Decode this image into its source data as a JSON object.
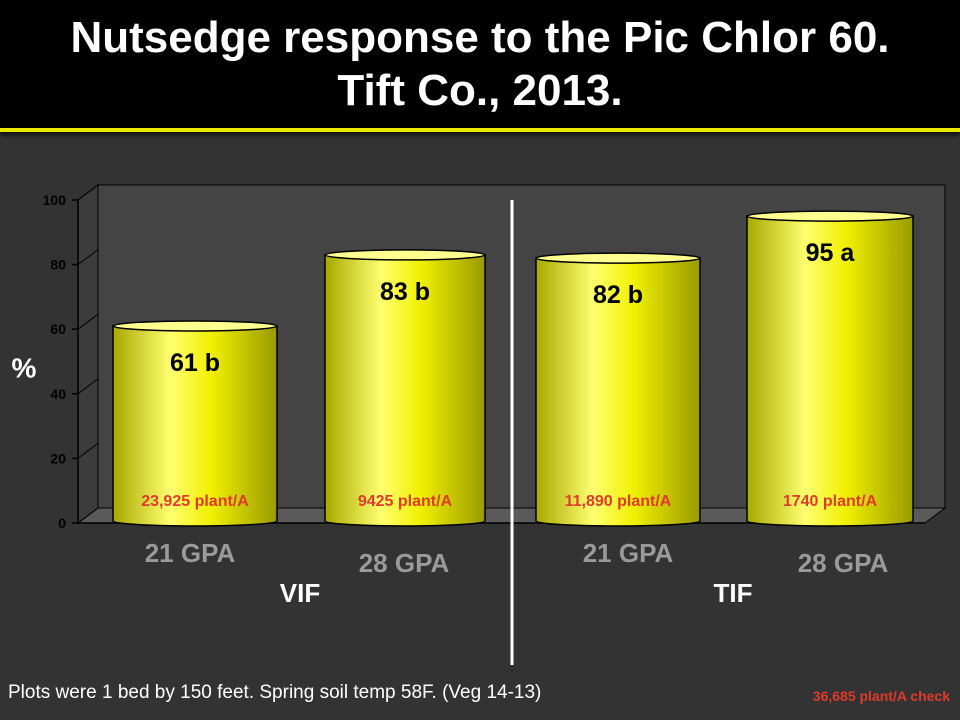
{
  "title_line1": "Nutsedge response to the Pic Chlor 60.",
  "title_line2": "Tift Co., 2013.",
  "footnote": "Plots were 1 bed by 150 feet. Spring soil temp 58F. (Veg 14-13)",
  "check_note": "36,685 plant/A check",
  "colors": {
    "bar": "#f0f000",
    "bar_light": "#ffff90",
    "bar_dark": "#a8a800",
    "plant_label": "#e03a2a",
    "category_label": "#9a9a9a",
    "group_label": "#ffffff",
    "wall": "#444444"
  },
  "chart_data": {
    "type": "bar",
    "ylabel": "%",
    "ylim": [
      0,
      100
    ],
    "yticks": [
      0,
      20,
      40,
      60,
      80,
      100
    ],
    "categories": [
      "21 GPA",
      "28 GPA",
      "21 GPA",
      "28 GPA"
    ],
    "groups": [
      {
        "name": "VIF",
        "categories": [
          0,
          1
        ]
      },
      {
        "name": "TIF",
        "categories": [
          2,
          3
        ]
      }
    ],
    "values": [
      61,
      83,
      82,
      95
    ],
    "value_labels": [
      "61 b",
      "83 b",
      "82 b",
      "95 a"
    ],
    "plant_labels": [
      "23,925 plant/A",
      "9425 plant/A",
      "11,890 plant/A",
      "1740 plant/A"
    ],
    "grid": false,
    "style": "3d-cylinder"
  }
}
